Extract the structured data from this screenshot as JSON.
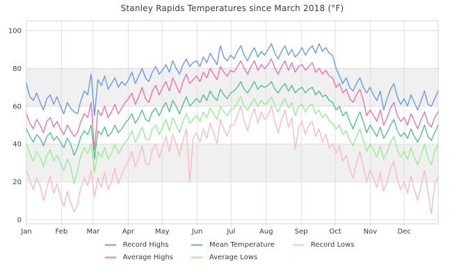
{
  "chart_data": {
    "type": "line",
    "title": "Stanley Rapids Temperatures since March 2018 (°F)",
    "xlabel": "",
    "ylabel": "",
    "x_axis": {
      "tick_labels": [
        "Jan",
        "Feb",
        "Mar",
        "Apr",
        "May",
        "Jun",
        "Jul",
        "Aug",
        "Sep",
        "Oct",
        "Nov",
        "Dec"
      ],
      "month_start_days": [
        1,
        32,
        60,
        91,
        121,
        152,
        182,
        213,
        244,
        274,
        305,
        335
      ],
      "days_in_year": 365
    },
    "y_axis": {
      "ticks": [
        0,
        20,
        40,
        60,
        80,
        100
      ],
      "tick_labels": [
        "0",
        "20",
        "40",
        "60",
        "80",
        "100"
      ],
      "range": [
        -2,
        105
      ]
    },
    "shaded_bands": [
      [
        20,
        40
      ],
      [
        60,
        80
      ]
    ],
    "grid": true,
    "legend_position": "bottom",
    "legend_columns": 3,
    "sample_interval_days": 3,
    "series": [
      {
        "name": "Record Highs",
        "color": "#6495ED",
        "values": [
          72,
          65,
          63,
          67,
          62,
          58,
          64,
          66,
          61,
          65,
          60,
          56,
          62,
          59,
          57,
          56,
          63,
          68,
          66,
          77,
          55,
          74,
          71,
          76,
          69,
          72,
          75,
          70,
          73,
          71,
          74,
          78,
          72,
          76,
          80,
          75,
          73,
          78,
          81,
          77,
          79,
          82,
          78,
          84,
          80,
          77,
          82,
          85,
          81,
          83,
          84,
          81,
          86,
          83,
          88,
          85,
          82,
          92,
          86,
          84,
          87,
          85,
          89,
          92,
          87,
          84,
          88,
          91,
          86,
          89,
          87,
          90,
          93,
          88,
          85,
          89,
          92,
          87,
          90,
          86,
          88,
          91,
          87,
          90,
          92,
          88,
          93,
          89,
          91,
          88,
          87,
          80,
          76,
          72,
          75,
          70,
          68,
          72,
          75,
          70,
          67,
          70,
          66,
          63,
          68,
          58,
          64,
          69,
          72,
          65,
          61,
          64,
          60,
          66,
          62,
          58,
          63,
          68,
          61,
          60,
          64,
          68
        ]
      },
      {
        "name": "Average Highs",
        "color": "#EE6CA6",
        "values": [
          56,
          51,
          48,
          53,
          50,
          46,
          52,
          54,
          49,
          52,
          48,
          45,
          50,
          47,
          44,
          46,
          52,
          56,
          54,
          62,
          37,
          58,
          55,
          60,
          54,
          57,
          61,
          56,
          59,
          62,
          64,
          67,
          61,
          65,
          70,
          64,
          62,
          68,
          71,
          66,
          70,
          73,
          68,
          75,
          71,
          67,
          73,
          77,
          72,
          74,
          76,
          73,
          78,
          75,
          80,
          77,
          74,
          81,
          78,
          76,
          79,
          78,
          81,
          84,
          80,
          77,
          81,
          84,
          79,
          82,
          80,
          82,
          85,
          80,
          77,
          81,
          84,
          79,
          83,
          78,
          81,
          82,
          79,
          81,
          83,
          78,
          80,
          77,
          79,
          76,
          75,
          70,
          72,
          67,
          69,
          64,
          62,
          66,
          69,
          63,
          55,
          58,
          55,
          52,
          58,
          50,
          54,
          59,
          62,
          55,
          52,
          54,
          50,
          56,
          52,
          48,
          53,
          57,
          51,
          49,
          54,
          57
        ]
      },
      {
        "name": "Mean Temperature",
        "color": "#4BBF86",
        "values": [
          48,
          44,
          41,
          45,
          43,
          39,
          44,
          46,
          42,
          44,
          41,
          38,
          43,
          40,
          34,
          38,
          44,
          47,
          45,
          50,
          32,
          47,
          45,
          49,
          44,
          46,
          50,
          46,
          48,
          51,
          53,
          56,
          51,
          54,
          58,
          53,
          52,
          57,
          59,
          55,
          59,
          62,
          57,
          63,
          60,
          56,
          61,
          65,
          60,
          62,
          64,
          62,
          66,
          63,
          68,
          65,
          63,
          69,
          66,
          64,
          67,
          68,
          70,
          73,
          69,
          67,
          70,
          73,
          69,
          71,
          70,
          71,
          73,
          69,
          67,
          70,
          72,
          68,
          71,
          67,
          69,
          70,
          67,
          69,
          70,
          66,
          68,
          65,
          66,
          63,
          62,
          58,
          60,
          55,
          57,
          52,
          48,
          53,
          57,
          52,
          46,
          50,
          47,
          44,
          49,
          43,
          46,
          50,
          53,
          47,
          44,
          46,
          43,
          48,
          44,
          41,
          45,
          50,
          44,
          42,
          46,
          50
        ]
      },
      {
        "name": "Average Lows",
        "color": "#90EE90",
        "values": [
          40,
          35,
          31,
          36,
          33,
          28,
          34,
          37,
          31,
          34,
          30,
          26,
          32,
          28,
          19,
          26,
          34,
          38,
          35,
          40,
          25,
          36,
          33,
          38,
          32,
          35,
          40,
          35,
          38,
          41,
          43,
          47,
          41,
          45,
          49,
          43,
          42,
          48,
          50,
          45,
          49,
          53,
          47,
          54,
          50,
          46,
          52,
          56,
          51,
          53,
          55,
          52,
          57,
          54,
          59,
          56,
          53,
          60,
          57,
          55,
          58,
          59,
          62,
          65,
          60,
          58,
          61,
          64,
          60,
          63,
          61,
          62,
          65,
          60,
          57,
          61,
          64,
          59,
          62,
          55,
          60,
          61,
          57,
          60,
          61,
          56,
          58,
          54,
          56,
          52,
          51,
          48,
          50,
          45,
          47,
          42,
          39,
          44,
          48,
          42,
          36,
          40,
          37,
          33,
          39,
          32,
          36,
          41,
          44,
          37,
          33,
          36,
          32,
          38,
          33,
          29,
          34,
          40,
          33,
          29,
          36,
          40
        ]
      },
      {
        "name": "Record Lows",
        "color": "#FFB6C1",
        "values": [
          26,
          21,
          16,
          22,
          18,
          10,
          17,
          23,
          14,
          19,
          12,
          7,
          15,
          9,
          4,
          8,
          17,
          22,
          18,
          26,
          12,
          22,
          17,
          25,
          16,
          20,
          27,
          19,
          24,
          28,
          31,
          36,
          28,
          33,
          39,
          30,
          29,
          37,
          40,
          33,
          38,
          44,
          36,
          45,
          40,
          34,
          42,
          48,
          20,
          43,
          46,
          41,
          48,
          43,
          51,
          46,
          40,
          53,
          48,
          44,
          50,
          50,
          55,
          60,
          52,
          47,
          54,
          59,
          51,
          57,
          53,
          55,
          60,
          52,
          46,
          53,
          58,
          49,
          54,
          37,
          49,
          52,
          45,
          50,
          52,
          44,
          48,
          41,
          45,
          38,
          40,
          35,
          39,
          31,
          34,
          27,
          22,
          30,
          36,
          28,
          20,
          26,
          22,
          17,
          25,
          15,
          20,
          27,
          31,
          21,
          16,
          20,
          14,
          23,
          16,
          10,
          18,
          26,
          15,
          3,
          19,
          23
        ]
      }
    ]
  },
  "colors": {
    "band": "#f0f0f0",
    "grid": "#dedede",
    "border": "#d4d4d4",
    "text": "#3a3a3a",
    "background": "#ffffff"
  }
}
